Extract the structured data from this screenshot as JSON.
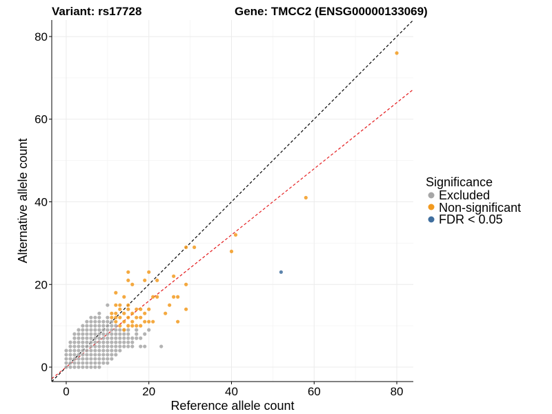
{
  "chart_data": {
    "type": "scatter",
    "title_left": "Variant: rs17728",
    "title_right": "Gene: TMCC2 (ENSG00000133069)",
    "xlabel": "Reference allele count",
    "ylabel": "Alternative allele count",
    "xlim": [
      -3.5,
      84
    ],
    "ylim": [
      -3.5,
      84
    ],
    "x_ticks": [
      0,
      20,
      40,
      60,
      80
    ],
    "y_ticks": [
      0,
      20,
      40,
      60,
      80
    ],
    "grid": true,
    "legend": {
      "title": "Significance",
      "position": "right",
      "entries": [
        {
          "label": "Excluded",
          "color": "#a6a6a6"
        },
        {
          "label": "Non-significant",
          "color": "#f29a1f"
        },
        {
          "label": "FDR < 0.05",
          "color": "#3f6e9e"
        }
      ]
    },
    "reference_lines": [
      {
        "style": "dashed",
        "color": "#000000",
        "slope": 1.0,
        "intercept": 0
      },
      {
        "style": "dashed",
        "color": "#e41a1c",
        "slope": 0.8,
        "intercept": 0
      }
    ],
    "series": [
      {
        "name": "Excluded",
        "color": "#a6a6a6",
        "points": [
          [
            0,
            0
          ],
          [
            0,
            1
          ],
          [
            0,
            2
          ],
          [
            0,
            3
          ],
          [
            0,
            4
          ],
          [
            1,
            0
          ],
          [
            1,
            1
          ],
          [
            1,
            2
          ],
          [
            1,
            3
          ],
          [
            1,
            4
          ],
          [
            1,
            5
          ],
          [
            1,
            6
          ],
          [
            2,
            0
          ],
          [
            2,
            1
          ],
          [
            2,
            2
          ],
          [
            2,
            3
          ],
          [
            2,
            4
          ],
          [
            2,
            5
          ],
          [
            2,
            6
          ],
          [
            2,
            7
          ],
          [
            2,
            8
          ],
          [
            3,
            0
          ],
          [
            3,
            1
          ],
          [
            3,
            2
          ],
          [
            3,
            3
          ],
          [
            3,
            4
          ],
          [
            3,
            5
          ],
          [
            3,
            6
          ],
          [
            3,
            7
          ],
          [
            3,
            8
          ],
          [
            3,
            9
          ],
          [
            4,
            0
          ],
          [
            4,
            1
          ],
          [
            4,
            2
          ],
          [
            4,
            3
          ],
          [
            4,
            4
          ],
          [
            4,
            5
          ],
          [
            4,
            6
          ],
          [
            4,
            7
          ],
          [
            4,
            8
          ],
          [
            4,
            9
          ],
          [
            4,
            10
          ],
          [
            5,
            0
          ],
          [
            5,
            1
          ],
          [
            5,
            2
          ],
          [
            5,
            3
          ],
          [
            5,
            4
          ],
          [
            5,
            5
          ],
          [
            5,
            6
          ],
          [
            5,
            7
          ],
          [
            5,
            8
          ],
          [
            5,
            9
          ],
          [
            5,
            10
          ],
          [
            5,
            11
          ],
          [
            6,
            0
          ],
          [
            6,
            1
          ],
          [
            6,
            2
          ],
          [
            6,
            3
          ],
          [
            6,
            4
          ],
          [
            6,
            5
          ],
          [
            6,
            6
          ],
          [
            6,
            7
          ],
          [
            6,
            8
          ],
          [
            6,
            9
          ],
          [
            6,
            10
          ],
          [
            6,
            11
          ],
          [
            6,
            12
          ],
          [
            7,
            0
          ],
          [
            7,
            1
          ],
          [
            7,
            2
          ],
          [
            7,
            3
          ],
          [
            7,
            4
          ],
          [
            7,
            5
          ],
          [
            7,
            6
          ],
          [
            7,
            7
          ],
          [
            7,
            8
          ],
          [
            7,
            9
          ],
          [
            7,
            10
          ],
          [
            7,
            11
          ],
          [
            7,
            12
          ],
          [
            8,
            0
          ],
          [
            8,
            1
          ],
          [
            8,
            2
          ],
          [
            8,
            3
          ],
          [
            8,
            4
          ],
          [
            8,
            5
          ],
          [
            8,
            6
          ],
          [
            8,
            7
          ],
          [
            8,
            8
          ],
          [
            8,
            9
          ],
          [
            8,
            10
          ],
          [
            8,
            11
          ],
          [
            8,
            12
          ],
          [
            8,
            13
          ],
          [
            9,
            1
          ],
          [
            9,
            2
          ],
          [
            9,
            3
          ],
          [
            9,
            4
          ],
          [
            9,
            5
          ],
          [
            9,
            6
          ],
          [
            9,
            7
          ],
          [
            9,
            8
          ],
          [
            9,
            9
          ],
          [
            9,
            10
          ],
          [
            9,
            11
          ],
          [
            10,
            1
          ],
          [
            10,
            2
          ],
          [
            10,
            3
          ],
          [
            10,
            4
          ],
          [
            10,
            5
          ],
          [
            10,
            6
          ],
          [
            10,
            7
          ],
          [
            10,
            8
          ],
          [
            10,
            9
          ],
          [
            10,
            10
          ],
          [
            10,
            11
          ],
          [
            10,
            12
          ],
          [
            10,
            15
          ],
          [
            11,
            2
          ],
          [
            11,
            3
          ],
          [
            11,
            4
          ],
          [
            11,
            5
          ],
          [
            11,
            6
          ],
          [
            11,
            7
          ],
          [
            11,
            8
          ],
          [
            11,
            9
          ],
          [
            11,
            10
          ],
          [
            11,
            11
          ],
          [
            12,
            3
          ],
          [
            12,
            4
          ],
          [
            12,
            5
          ],
          [
            12,
            6
          ],
          [
            12,
            7
          ],
          [
            12,
            8
          ],
          [
            12,
            9
          ],
          [
            12,
            10
          ],
          [
            13,
            4
          ],
          [
            13,
            5
          ],
          [
            13,
            6
          ],
          [
            13,
            7
          ],
          [
            13,
            8
          ],
          [
            13,
            9
          ],
          [
            14,
            5
          ],
          [
            14,
            6
          ],
          [
            14,
            7
          ],
          [
            14,
            8
          ],
          [
            14,
            9
          ],
          [
            15,
            5
          ],
          [
            15,
            6
          ],
          [
            15,
            7
          ],
          [
            15,
            8
          ],
          [
            15,
            9
          ],
          [
            16,
            5
          ],
          [
            16,
            6
          ],
          [
            16,
            7
          ],
          [
            17,
            7
          ],
          [
            17,
            8
          ],
          [
            17,
            9
          ],
          [
            18,
            5
          ],
          [
            18,
            7
          ],
          [
            19,
            5
          ],
          [
            19,
            8
          ],
          [
            20,
            9
          ],
          [
            23,
            5
          ]
        ]
      },
      {
        "name": "Non-significant",
        "color": "#f29a1f",
        "points": [
          [
            80,
            76
          ],
          [
            58,
            41
          ],
          [
            41,
            32
          ],
          [
            40,
            28
          ],
          [
            31,
            29
          ],
          [
            29,
            29
          ],
          [
            15,
            23
          ],
          [
            20,
            23
          ],
          [
            15,
            21
          ],
          [
            19,
            21
          ],
          [
            22,
            21
          ],
          [
            12,
            18
          ],
          [
            16,
            20
          ],
          [
            26,
            22
          ],
          [
            29,
            20
          ],
          [
            14,
            17
          ],
          [
            21,
            17
          ],
          [
            22,
            17
          ],
          [
            26,
            17
          ],
          [
            27,
            17
          ],
          [
            12,
            15
          ],
          [
            13,
            15
          ],
          [
            15,
            15
          ],
          [
            17,
            14
          ],
          [
            18,
            14
          ],
          [
            20,
            14
          ],
          [
            29,
            14
          ],
          [
            11,
            13
          ],
          [
            12,
            13
          ],
          [
            14,
            13
          ],
          [
            16,
            13
          ],
          [
            19,
            13
          ],
          [
            24,
            13
          ],
          [
            25,
            15
          ],
          [
            11,
            12
          ],
          [
            13,
            12
          ],
          [
            15,
            12
          ],
          [
            17,
            12
          ],
          [
            18,
            12
          ],
          [
            12,
            11
          ],
          [
            14,
            11
          ],
          [
            16,
            11
          ],
          [
            19,
            11
          ],
          [
            21,
            11
          ],
          [
            27,
            11
          ],
          [
            13,
            10
          ],
          [
            15,
            10
          ],
          [
            16,
            10
          ],
          [
            18,
            10
          ],
          [
            20,
            11
          ],
          [
            14,
            9
          ],
          [
            17,
            10
          ],
          [
            12,
            12
          ],
          [
            13,
            14
          ],
          [
            15,
            14
          ]
        ]
      },
      {
        "name": "FDR < 0.05",
        "color": "#3f6e9e",
        "points": [
          [
            52,
            23
          ]
        ]
      }
    ]
  }
}
